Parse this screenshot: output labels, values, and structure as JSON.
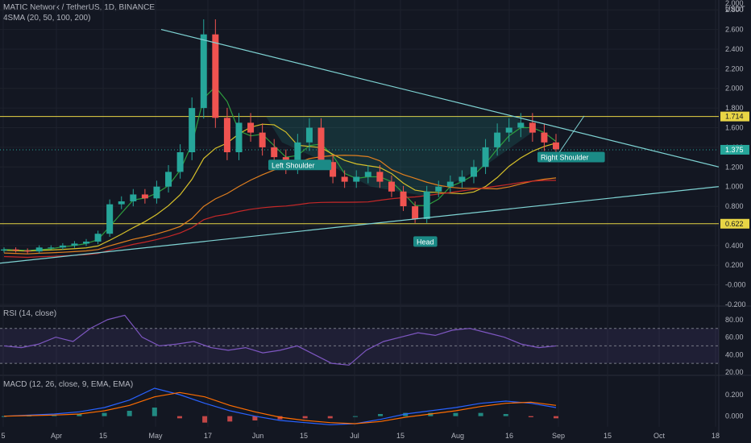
{
  "header": {
    "title": "MATIC Network / TetherUS, 1D, BINANCE",
    "sma_label": "4SMA (20, 50, 100, 200)",
    "rsi_label": "RSI (14, close)",
    "macd_label": "MACD (12, 26, close, 9, EMA, EMA)"
  },
  "colors": {
    "bg": "#131722",
    "grid": "#1e222d",
    "up": "#26a69a",
    "down": "#ef5350",
    "trend": "#7fd4d4",
    "hline": "#e8d545",
    "sma20": "#2e9e3e",
    "sma50": "#d6c02a",
    "sma100": "#e07f1f",
    "sma200": "#c62828",
    "rsi": "#7e57c2",
    "macd": "#2962ff",
    "signal": "#ff6d00"
  },
  "chart_data": [
    {
      "type": "candlestick",
      "title": "MATIC Network / TetherUS, 1D, BINANCE",
      "currency": "USDT",
      "x_labels": [
        "5",
        "Apr",
        "15",
        "May",
        "17",
        "Jun",
        "15",
        "Jul",
        "15",
        "Aug",
        "16",
        "Sep",
        "15",
        "Oct",
        "18"
      ],
      "y_ticks": [
        "2.800",
        "2.600",
        "2.400",
        "2.200",
        "2.000",
        "1.800",
        "1.600",
        "1.400",
        "1.200",
        "1.000",
        "0.800",
        "0.600",
        "0.400",
        "0.200",
        "-0.000",
        "-0.200"
      ],
      "y_top_partial": "2.000",
      "ylim": [
        -0.2,
        2.9
      ],
      "price_close": [
        0.36,
        0.35,
        0.34,
        0.38,
        0.38,
        0.4,
        0.42,
        0.44,
        0.52,
        0.82,
        0.85,
        0.92,
        0.88,
        1.0,
        1.15,
        1.35,
        1.8,
        2.55,
        1.7,
        1.35,
        1.65,
        1.55,
        1.4,
        1.3,
        1.2,
        1.45,
        1.6,
        1.25,
        1.1,
        1.05,
        1.1,
        1.15,
        1.05,
        0.95,
        0.8,
        0.67,
        0.95,
        1.0,
        1.05,
        1.1,
        1.2,
        1.4,
        1.55,
        1.6,
        1.65,
        1.55,
        1.45,
        1.38
      ],
      "annotations": [
        "Left Shoulder",
        "Head",
        "Right Shoulder"
      ],
      "price_labels": [
        "1.714",
        "1.375",
        "0.622"
      ],
      "horizontal_levels": [
        1.714,
        0.622
      ],
      "last_price": 1.375
    },
    {
      "type": "line",
      "title": "RSI (14, close)",
      "y_ticks": [
        "80.00",
        "60.00",
        "40.00",
        "20.00"
      ],
      "ylim": [
        20,
        90
      ],
      "band": [
        30,
        70
      ],
      "values": [
        50,
        48,
        52,
        60,
        55,
        70,
        80,
        85,
        60,
        50,
        52,
        55,
        48,
        45,
        48,
        42,
        45,
        50,
        40,
        30,
        28,
        45,
        55,
        60,
        65,
        62,
        68,
        70,
        65,
        60,
        52,
        48,
        50
      ]
    },
    {
      "type": "line",
      "title": "MACD (12, 26, close, 9, EMA, EMA)",
      "y_ticks": [
        "0.200",
        "0.000"
      ],
      "ylim": [
        -0.1,
        0.35
      ],
      "macd": [
        0,
        0.01,
        0.02,
        0.04,
        0.08,
        0.15,
        0.26,
        0.2,
        0.12,
        0.05,
        0.0,
        -0.04,
        -0.06,
        -0.08,
        -0.07,
        -0.03,
        0.02,
        0.05,
        0.08,
        0.12,
        0.14,
        0.12,
        0.08
      ],
      "signal": [
        0,
        0.005,
        0.01,
        0.02,
        0.05,
        0.1,
        0.18,
        0.22,
        0.18,
        0.1,
        0.04,
        -0.01,
        -0.04,
        -0.06,
        -0.07,
        -0.05,
        -0.01,
        0.02,
        0.05,
        0.09,
        0.12,
        0.13,
        0.1
      ]
    }
  ]
}
